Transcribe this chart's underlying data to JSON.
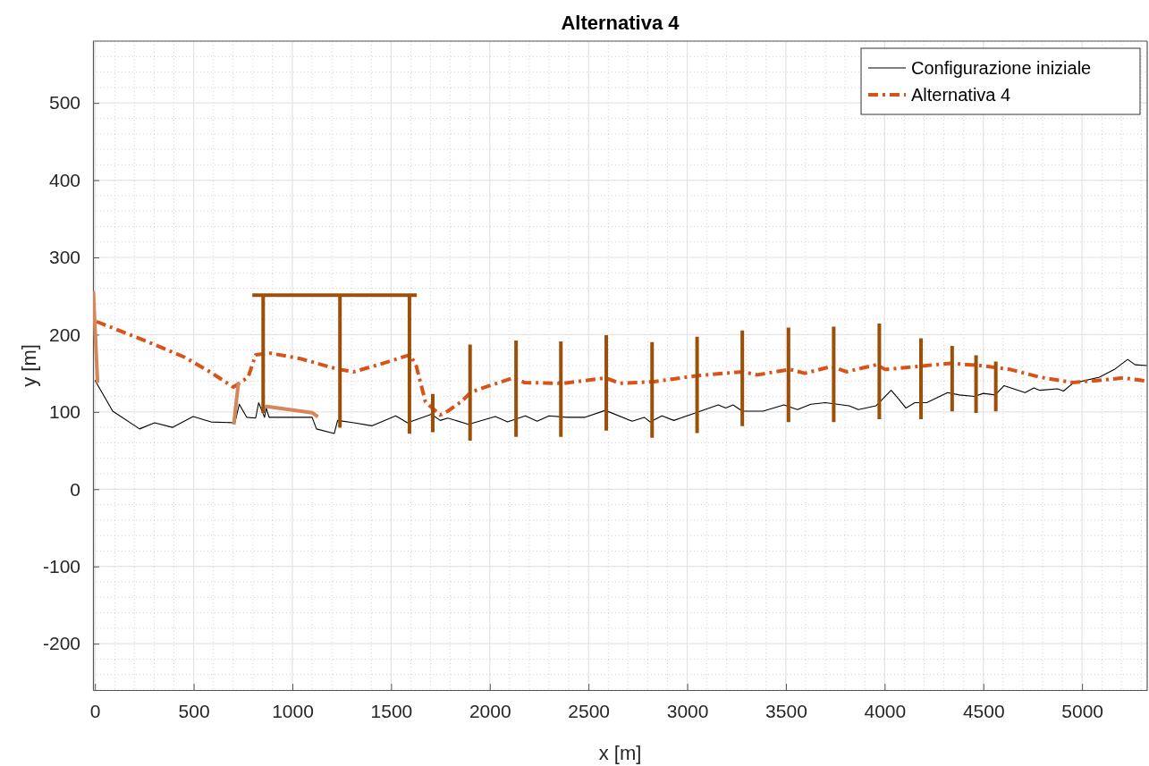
{
  "chart_data": {
    "type": "line",
    "title": "Alternativa 4",
    "xlabel": "x [m]",
    "ylabel": "y [m]",
    "xlim": [
      -10,
      5330
    ],
    "ylim": [
      -260,
      580
    ],
    "xticks": [
      0,
      500,
      1000,
      1500,
      2000,
      2500,
      3000,
      3500,
      4000,
      4500,
      5000
    ],
    "yticks": [
      -200,
      -100,
      0,
      100,
      200,
      300,
      400,
      500
    ],
    "grid": true,
    "legend": "top right",
    "series": [
      {
        "name": "Configurazione iniziale",
        "color": "#000000",
        "line_style": "solid",
        "x": [
          0,
          90,
          226,
          302,
          392,
          497,
          588,
          709,
          731,
          769,
          814,
          829,
          859,
          867,
          882,
          1100,
          1122,
          1212,
          1229,
          1312,
          1402,
          1523,
          1583,
          1704,
          1749,
          1787,
          1892,
          2028,
          2090,
          2180,
          2240,
          2300,
          2390,
          2480,
          2585,
          2721,
          2782,
          2812,
          2872,
          2932,
          3022,
          3157,
          3195,
          3232,
          3279,
          3384,
          3490,
          3558,
          3626,
          3700,
          3820,
          3867,
          3957,
          4033,
          4070,
          4108,
          4153,
          4213,
          4319,
          4379,
          4455,
          4500,
          4560,
          4605,
          4711,
          4756,
          4786,
          4876,
          4906,
          4953,
          5088,
          5164,
          5231,
          5269,
          5328
        ],
        "values": [
          141,
          101,
          78,
          86,
          80,
          94,
          87,
          86,
          110,
          93,
          92,
          112,
          93,
          105,
          93,
          93,
          78,
          72,
          89,
          86,
          82,
          95,
          86,
          97,
          89,
          92,
          84,
          94,
          87,
          95,
          88,
          95,
          93,
          93,
          102,
          88,
          93,
          87,
          95,
          89,
          97,
          109,
          105,
          109,
          101,
          101,
          109,
          103,
          110,
          112,
          108,
          103,
          108,
          128,
          117,
          105,
          112,
          112,
          125,
          122,
          120,
          124,
          122,
          134,
          125,
          131,
          128,
          130,
          127,
          137,
          145,
          155,
          168,
          161,
          160
        ]
      },
      {
        "name": "Alternativa 4",
        "color": "#d95319",
        "line_style": "dashed",
        "x": [
          8,
          256,
          452,
          588,
          701,
          776,
          814,
          889,
          1040,
          1235,
          1312,
          1461,
          1597,
          1628,
          1674,
          1749,
          1787,
          1854,
          1907,
          2117,
          2177,
          2374,
          2585,
          2660,
          2827,
          3053,
          3279,
          3354,
          3520,
          3596,
          3731,
          3807,
          3957,
          4003,
          4334,
          4485,
          4636,
          4786,
          4953,
          5088,
          5209,
          5328
        ],
        "values": [
          217,
          192,
          171,
          151,
          132,
          145,
          174,
          176,
          169,
          155,
          152,
          163,
          174,
          159,
          113,
          96,
          101,
          113,
          126,
          144,
          138,
          137,
          144,
          137,
          139,
          147,
          152,
          148,
          155,
          150,
          159,
          152,
          161,
          155,
          163,
          160,
          155,
          145,
          138,
          141,
          144,
          140
        ]
      },
      {
        "color": "#d4875a",
        "line_style": "solid",
        "x": [
          -8,
          13,
          null,
          704,
          726,
          null,
          870,
          1100,
          1122
        ],
        "values": [
          254,
          140,
          null,
          86,
          136,
          null,
          107,
          99,
          95
        ]
      },
      {
        "color": "#9c4f08",
        "line_style": "solid",
        "x": [
          806,
          1621,
          null,
          852,
          852,
          null,
          1241,
          1241,
          null,
          1593,
          1593,
          null,
          1711,
          1711,
          null,
          1900,
          1900,
          null,
          2133,
          2133,
          null,
          2360,
          2360,
          null,
          2590,
          2590,
          null,
          2822,
          2822,
          null,
          3050,
          3050,
          null,
          3279,
          3279,
          null,
          3513,
          3513,
          null,
          3742,
          3742,
          null,
          3973,
          3973,
          null,
          4184,
          4184,
          null,
          4342,
          4342,
          null,
          4463,
          4463,
          null,
          4563,
          4563
        ],
        "values": [
          251,
          251,
          null,
          251,
          101,
          null,
          251,
          82,
          null,
          251,
          74,
          null,
          121,
          76,
          null,
          185,
          65,
          null,
          190,
          70,
          null,
          189,
          70,
          null,
          197,
          78,
          null,
          188,
          69,
          null,
          195,
          75,
          null,
          203,
          84,
          null,
          207,
          89,
          null,
          208,
          89,
          null,
          212,
          93,
          null,
          193,
          93,
          null,
          183,
          103,
          null,
          171,
          101,
          null,
          163,
          103
        ]
      }
    ]
  }
}
